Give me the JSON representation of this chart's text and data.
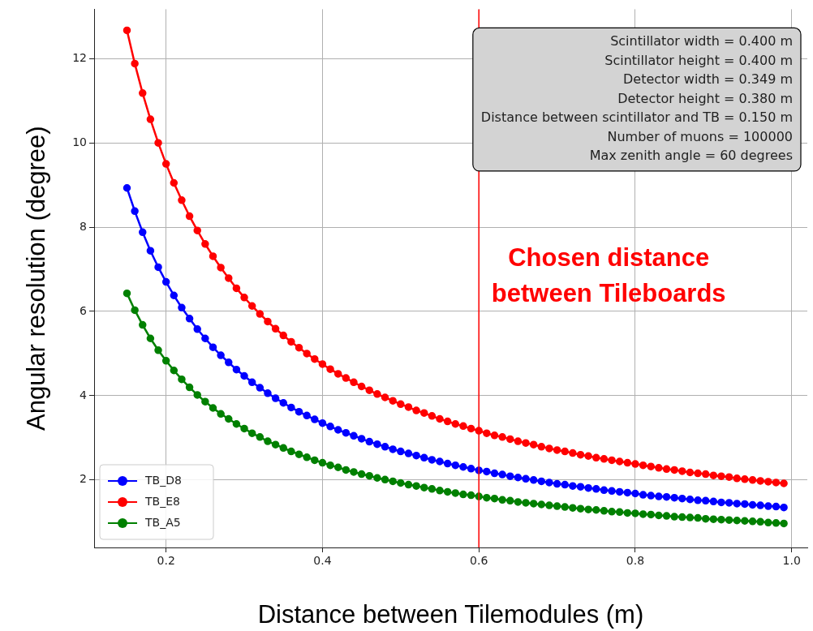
{
  "chart_data": {
    "type": "line",
    "xlabel": "Distance between Tilemodules (m)",
    "ylabel": "Angular resolution (degree)",
    "x": [
      0.15,
      0.16,
      0.17,
      0.18,
      0.19,
      0.2,
      0.21,
      0.22,
      0.23,
      0.24,
      0.25,
      0.26,
      0.27,
      0.28,
      0.29,
      0.3,
      0.31,
      0.32,
      0.33,
      0.34,
      0.35,
      0.36,
      0.37,
      0.38,
      0.39,
      0.4,
      0.41,
      0.42,
      0.43,
      0.44,
      0.45,
      0.46,
      0.47,
      0.48,
      0.49,
      0.5,
      0.51,
      0.52,
      0.53,
      0.54,
      0.55,
      0.56,
      0.57,
      0.58,
      0.59,
      0.6,
      0.61,
      0.62,
      0.63,
      0.64,
      0.65,
      0.66,
      0.67,
      0.68,
      0.69,
      0.7,
      0.71,
      0.72,
      0.73,
      0.74,
      0.75,
      0.76,
      0.77,
      0.78,
      0.79,
      0.8,
      0.81,
      0.82,
      0.83,
      0.84,
      0.85,
      0.86,
      0.87,
      0.88,
      0.89,
      0.9,
      0.91,
      0.92,
      0.93,
      0.94,
      0.95,
      0.96,
      0.97,
      0.98,
      0.99
    ],
    "series": [
      {
        "name": "TB_D8",
        "color": "#0000ff",
        "values": [
          8.93,
          8.38,
          7.88,
          7.44,
          7.05,
          6.7,
          6.38,
          6.09,
          5.83,
          5.58,
          5.36,
          5.15,
          4.96,
          4.79,
          4.62,
          4.47,
          4.32,
          4.19,
          4.06,
          3.94,
          3.83,
          3.72,
          3.62,
          3.53,
          3.44,
          3.35,
          3.27,
          3.19,
          3.12,
          3.05,
          2.98,
          2.91,
          2.85,
          2.79,
          2.73,
          2.68,
          2.63,
          2.58,
          2.53,
          2.48,
          2.44,
          2.39,
          2.35,
          2.31,
          2.27,
          2.23,
          2.2,
          2.16,
          2.13,
          2.09,
          2.06,
          2.03,
          2.0,
          1.97,
          1.94,
          1.91,
          1.89,
          1.86,
          1.84,
          1.81,
          1.79,
          1.76,
          1.74,
          1.72,
          1.7,
          1.68,
          1.65,
          1.63,
          1.61,
          1.6,
          1.58,
          1.56,
          1.54,
          1.52,
          1.51,
          1.49,
          1.47,
          1.46,
          1.44,
          1.43,
          1.41,
          1.4,
          1.38,
          1.37,
          1.35
        ]
      },
      {
        "name": "TB_E8",
        "color": "#ff0000",
        "values": [
          12.67,
          11.88,
          11.18,
          10.56,
          10.0,
          9.5,
          9.05,
          8.64,
          8.26,
          7.92,
          7.6,
          7.31,
          7.04,
          6.79,
          6.55,
          6.33,
          6.13,
          5.94,
          5.76,
          5.59,
          5.43,
          5.28,
          5.14,
          5.0,
          4.87,
          4.75,
          4.63,
          4.52,
          4.42,
          4.32,
          4.22,
          4.13,
          4.04,
          3.96,
          3.88,
          3.8,
          3.73,
          3.65,
          3.59,
          3.52,
          3.45,
          3.39,
          3.33,
          3.28,
          3.22,
          3.17,
          3.11,
          3.06,
          3.02,
          2.97,
          2.92,
          2.88,
          2.84,
          2.79,
          2.75,
          2.71,
          2.68,
          2.64,
          2.6,
          2.57,
          2.53,
          2.5,
          2.47,
          2.44,
          2.41,
          2.38,
          2.35,
          2.32,
          2.29,
          2.26,
          2.24,
          2.21,
          2.18,
          2.16,
          2.14,
          2.11,
          2.09,
          2.07,
          2.04,
          2.02,
          2.0,
          1.98,
          1.96,
          1.94,
          1.92
        ]
      },
      {
        "name": "TB_A5",
        "color": "#008000",
        "values": [
          6.43,
          6.03,
          5.68,
          5.36,
          5.08,
          4.83,
          4.6,
          4.39,
          4.2,
          4.02,
          3.86,
          3.71,
          3.57,
          3.45,
          3.33,
          3.22,
          3.11,
          3.02,
          2.92,
          2.84,
          2.76,
          2.68,
          2.61,
          2.54,
          2.47,
          2.41,
          2.35,
          2.3,
          2.24,
          2.19,
          2.14,
          2.1,
          2.05,
          2.01,
          1.97,
          1.93,
          1.89,
          1.86,
          1.82,
          1.79,
          1.75,
          1.72,
          1.69,
          1.66,
          1.64,
          1.61,
          1.58,
          1.56,
          1.53,
          1.51,
          1.48,
          1.46,
          1.44,
          1.42,
          1.4,
          1.38,
          1.36,
          1.34,
          1.32,
          1.3,
          1.29,
          1.27,
          1.25,
          1.24,
          1.22,
          1.21,
          1.19,
          1.18,
          1.16,
          1.15,
          1.13,
          1.12,
          1.11,
          1.1,
          1.08,
          1.07,
          1.06,
          1.05,
          1.04,
          1.03,
          1.02,
          1.01,
          0.99,
          0.98,
          0.97
        ]
      }
    ],
    "xlim": [
      0.108,
      1.02
    ],
    "xticks": [
      0.2,
      0.4,
      0.6,
      0.8,
      {
        "value": 1,
        "label": "1.0"
      }
    ],
    "ylim": [
      0.4,
      13.17
    ],
    "yticks": [
      2,
      4,
      6,
      8,
      10,
      12
    ],
    "ref_lines": [
      {
        "axis": "x",
        "value": 0.6,
        "label": "Chosen distance\nbetween Tileboards",
        "color": "#ff0000"
      }
    ],
    "annotations": [
      "Scintillator width = 0.400 m",
      "Scintillator height = 0.400 m",
      "Detector width = 0.349 m",
      "Detector height = 0.380 m",
      "Distance between scintillator and TB = 0.150 m",
      "Number of muons = 100000",
      "Max zenith angle = 60 degrees"
    ],
    "legend": "bottom left",
    "grid": true,
    "marker": "circle",
    "line_style": "solid"
  }
}
